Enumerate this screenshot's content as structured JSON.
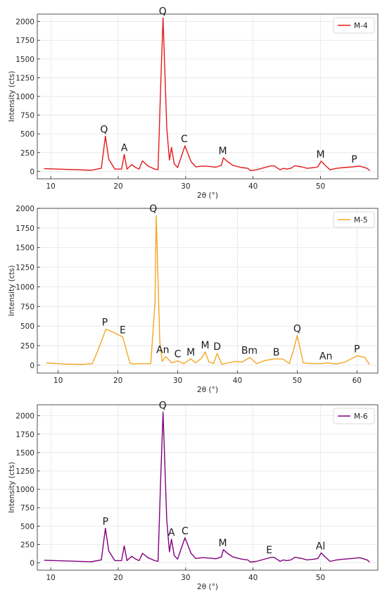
{
  "chart_data": [
    {
      "type": "line",
      "xlabel": "2θ (°)",
      "ylabel": "Intensity (cts)",
      "xlim": [
        8,
        58.5
      ],
      "ylim": [
        -100,
        2100
      ],
      "xticks": [
        10,
        20,
        30,
        40,
        50
      ],
      "yticks": [
        0,
        250,
        500,
        750,
        1000,
        1250,
        1500,
        1750,
        2000
      ],
      "grid": true,
      "legend_position": "top-right",
      "series": [
        {
          "name": "M-4",
          "color": "#e31a1c",
          "x": [
            9,
            16,
            17.5,
            18.1,
            18.6,
            19.5,
            20.5,
            20.9,
            21.3,
            22,
            22.6,
            23.1,
            23.6,
            24.4,
            25.4,
            25.9,
            26.3,
            26.65,
            27.2,
            27.6,
            27.9,
            28.3,
            28.8,
            29.9,
            30.8,
            31.5,
            32.5,
            33.5,
            34.5,
            35.3,
            35.6,
            36.2,
            37,
            38.3,
            39.2,
            39.6,
            40.5,
            42.5,
            43.1,
            44,
            44.5,
            45,
            45.6,
            46.2,
            47.2,
            48,
            49.1,
            49.6,
            50.1,
            50.7,
            51.4,
            52.4,
            53.5,
            54.8,
            55.8,
            56.9,
            57.3
          ],
          "y": [
            35,
            15,
            40,
            470,
            160,
            30,
            30,
            225,
            30,
            90,
            50,
            30,
            140,
            70,
            30,
            20,
            1150,
            2050,
            580,
            150,
            320,
            100,
            50,
            340,
            130,
            60,
            70,
            65,
            55,
            80,
            180,
            130,
            80,
            50,
            40,
            10,
            20,
            70,
            75,
            20,
            40,
            30,
            40,
            75,
            60,
            40,
            50,
            60,
            135,
            80,
            20,
            40,
            50,
            60,
            70,
            40,
            10
          ]
        }
      ],
      "annotations": [
        "Q",
        "A",
        "Q",
        "C",
        "M",
        "M",
        "P"
      ]
    },
    {
      "type": "line",
      "xlabel": "2θ (°)",
      "ylabel": "Intensity (cts)",
      "xlim": [
        6.5,
        63.5
      ],
      "ylim": [
        -100,
        2000
      ],
      "xticks": [
        10,
        20,
        30,
        40,
        50,
        60
      ],
      "yticks": [
        0,
        250,
        500,
        750,
        1000,
        1250,
        1500,
        1750,
        2000
      ],
      "grid": true,
      "legend_position": "top-right",
      "series": [
        {
          "name": "M-5",
          "color": "#f5a623",
          "x": [
            8,
            11,
            14,
            15.7,
            16.5,
            18,
            19.5,
            20.8,
            22,
            22.5,
            23.5,
            25.5,
            26.2,
            26.4,
            27,
            27.4,
            28,
            29,
            30,
            31,
            32.2,
            33,
            34,
            34.6,
            35.2,
            36,
            36.6,
            37.4,
            38.4,
            39.6,
            40.8,
            42.1,
            43.2,
            44.6,
            46.1,
            47.6,
            48.7,
            49.4,
            50,
            51,
            52.5,
            54,
            55,
            56.5,
            58,
            60,
            61.3,
            62.1
          ],
          "y": [
            30,
            15,
            10,
            20,
            160,
            460,
            410,
            360,
            30,
            15,
            20,
            20,
            800,
            1910,
            300,
            50,
            110,
            30,
            55,
            20,
            80,
            30,
            90,
            170,
            45,
            20,
            150,
            10,
            30,
            50,
            40,
            100,
            20,
            60,
            80,
            80,
            20,
            200,
            380,
            30,
            20,
            20,
            30,
            15,
            40,
            120,
            100,
            10
          ]
        }
      ],
      "annotations": [
        "P",
        "E",
        "Q",
        "An",
        "C",
        "M",
        "M",
        "D",
        "Bm",
        "B",
        "Q",
        "An",
        "P"
      ]
    },
    {
      "type": "line",
      "xlabel": "2θ (°)",
      "ylabel": "Intensity (cts)",
      "xlim": [
        8,
        58.5
      ],
      "ylim": [
        -100,
        2150
      ],
      "xticks": [
        10,
        20,
        30,
        40,
        50
      ],
      "yticks": [
        0,
        250,
        500,
        750,
        1000,
        1250,
        1500,
        1750,
        2000
      ],
      "grid": true,
      "legend_position": "top-right",
      "series": [
        {
          "name": "M-6",
          "color": "#800080",
          "x": [
            9,
            16,
            17.5,
            18.1,
            18.6,
            19.5,
            20.5,
            20.9,
            21.3,
            22,
            22.6,
            23.1,
            23.6,
            24.4,
            25.4,
            25.9,
            26.3,
            26.65,
            27.2,
            27.6,
            27.9,
            28.3,
            28.8,
            29.9,
            30.8,
            31.5,
            32.5,
            33.5,
            34.5,
            35.3,
            35.6,
            36.2,
            37,
            38.3,
            39.2,
            39.6,
            40.5,
            42.5,
            43.1,
            44,
            44.5,
            45,
            45.6,
            46.2,
            47.2,
            48,
            49.1,
            49.6,
            50.1,
            50.7,
            51.4,
            52.4,
            53.5,
            54.8,
            55.8,
            56.9,
            57.3
          ],
          "y": [
            35,
            15,
            40,
            470,
            160,
            30,
            30,
            230,
            30,
            90,
            50,
            30,
            130,
            70,
            30,
            20,
            1150,
            2050,
            580,
            150,
            320,
            100,
            50,
            340,
            130,
            60,
            70,
            65,
            55,
            80,
            180,
            130,
            80,
            50,
            40,
            10,
            20,
            70,
            75,
            20,
            40,
            30,
            40,
            75,
            60,
            40,
            50,
            60,
            135,
            80,
            20,
            40,
            50,
            60,
            70,
            40,
            10
          ]
        }
      ],
      "annotations": [
        "P",
        "Q",
        "A",
        "C",
        "M",
        "E",
        "Al"
      ]
    }
  ]
}
